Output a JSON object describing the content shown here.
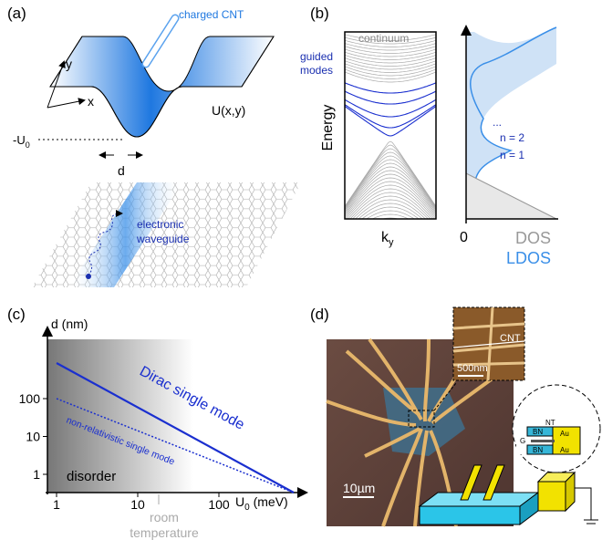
{
  "panel_a": {
    "label": "(a)",
    "cnt_label": "charged CNT",
    "axis_y": "y",
    "axis_x": "x",
    "potential_label": "U(x,y)",
    "depth_label": {
      "base": "-U",
      "sub": "0"
    },
    "width_label": "d",
    "waveguide_label": [
      "electronic",
      "waveguide"
    ]
  },
  "panel_b": {
    "label": "(b)",
    "guided_modes": [
      "guided",
      "modes"
    ],
    "continuum": "continuum",
    "y_axis": "Energy",
    "x_axis": {
      "base": "k",
      "sub": "y"
    },
    "zero": "0",
    "dos": "DOS",
    "ldos": "LDOS",
    "mode_labels": [
      "...",
      "n = 2",
      "n = 1"
    ]
  },
  "panel_c": {
    "label": "(c)",
    "y_axis": "d (nm)",
    "x_axis": {
      "base": "U",
      "sub": "0",
      "unit": " (meV)"
    },
    "xticks": [
      1,
      10,
      100
    ],
    "yticks": [
      1,
      10,
      100
    ],
    "dirac_label": "Dirac single mode",
    "nonrel_label": "non-relativistic single mode",
    "disorder_label": "disorder",
    "room_temperature": [
      "room",
      "temperature"
    ]
  },
  "panel_d": {
    "label": "(d)",
    "cnt_label": "CNT",
    "afm_scale": "500nm",
    "photo_scale": "10µm",
    "schematic": {
      "nt": "NT",
      "bn_top": "BN",
      "au_top": "Au",
      "gate": "G",
      "bn_bottom": "BN",
      "au_bottom": "Au"
    }
  }
}
